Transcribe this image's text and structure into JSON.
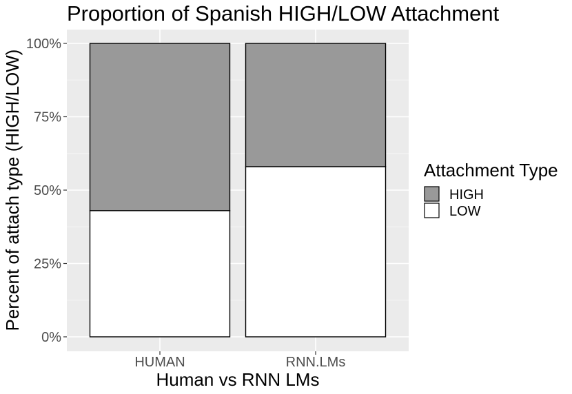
{
  "chart_data": {
    "type": "bar",
    "stacked": true,
    "title": "Proportion of Spanish HIGH/LOW Attachment",
    "xlabel": "Human vs RNN LMs",
    "ylabel": "Percent of attach type (HIGH/LOW)",
    "categories": [
      "HUMAN",
      "RNN.LMs"
    ],
    "series": [
      {
        "name": "LOW",
        "values": [
          43,
          58
        ],
        "color": "#ffffff"
      },
      {
        "name": "HIGH",
        "values": [
          57,
          42
        ],
        "color": "#999999"
      }
    ],
    "ylim": [
      0,
      100
    ],
    "yticks": [
      "0%",
      "25%",
      "50%",
      "75%",
      "100%"
    ],
    "ytick_values": [
      0,
      25,
      50,
      75,
      100
    ],
    "grid": true,
    "panel_background": "#ebebeb",
    "legend": {
      "title": "Attachment Type",
      "position": "right",
      "items": [
        {
          "label": "HIGH",
          "color": "#999999"
        },
        {
          "label": "LOW",
          "color": "#ffffff"
        }
      ]
    }
  }
}
